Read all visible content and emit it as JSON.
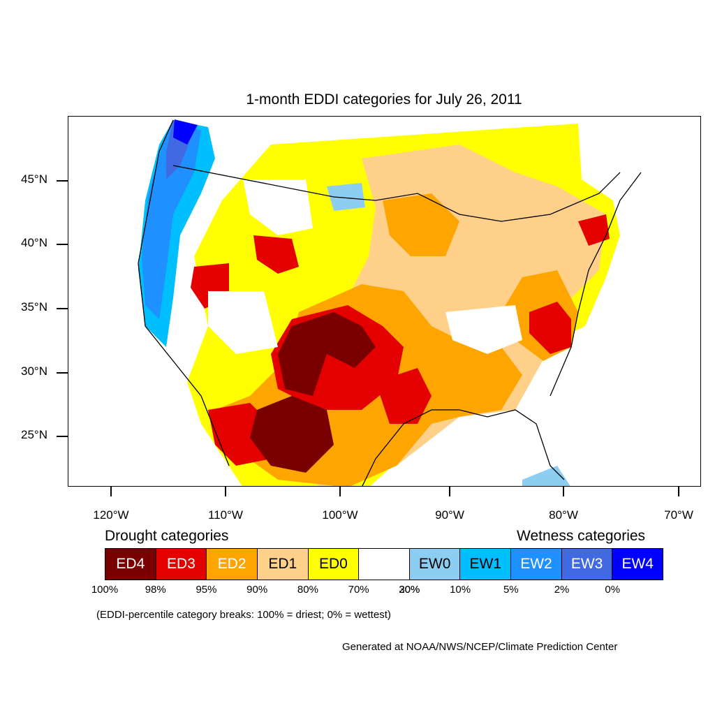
{
  "title": "1-month EDDI categories for July 26, 2011",
  "lat_labels": [
    "45°N",
    "40°N",
    "35°N",
    "30°N",
    "25°N"
  ],
  "lon_labels": [
    "120°W",
    "110°W",
    "100°W",
    "90°W",
    "80°W",
    "70°W"
  ],
  "legend": {
    "drought_heading": "Drought categories",
    "wetness_heading": "Wetness categories",
    "categories": [
      {
        "label": "ED4",
        "color": "#7a0000",
        "text_color": "#ffffff"
      },
      {
        "label": "ED3",
        "color": "#e50000",
        "text_color": "#ffffff"
      },
      {
        "label": "ED2",
        "color": "#ffa500",
        "text_color": "#ffffff"
      },
      {
        "label": "ED1",
        "color": "#ffd08a",
        "text_color": "#000000"
      },
      {
        "label": "ED0",
        "color": "#ffff00",
        "text_color": "#000000"
      },
      {
        "label": "",
        "color": "#ffffff",
        "text_color": "#000000"
      },
      {
        "label": "EW0",
        "color": "#8ccdf2",
        "text_color": "#000000"
      },
      {
        "label": "EW1",
        "color": "#00bfff",
        "text_color": "#000000"
      },
      {
        "label": "EW2",
        "color": "#1e90ff",
        "text_color": "#ffffff"
      },
      {
        "label": "EW3",
        "color": "#4169e1",
        "text_color": "#ffffff"
      },
      {
        "label": "EW4",
        "color": "#0000ff",
        "text_color": "#ffffff"
      }
    ],
    "percentiles": [
      "100%",
      "98%",
      "95%",
      "90%",
      "80%",
      "70%",
      "30%",
      "20%",
      "10%",
      "5%",
      "2%",
      "0%"
    ]
  },
  "note": "(EDDI-percentile category breaks: 100% = driest; 0% = wettest)",
  "credit": "Generated at NOAA/NWS/NCEP/Climate Prediction Center"
}
